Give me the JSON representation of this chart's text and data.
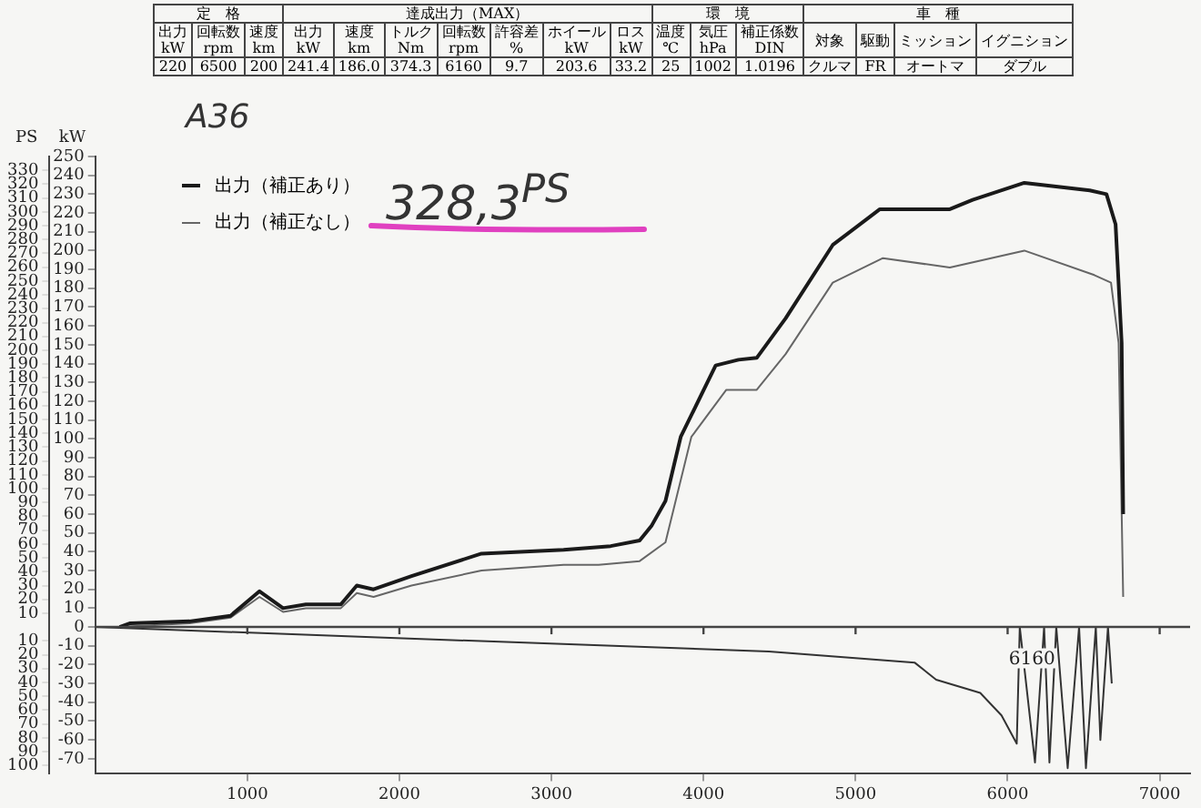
{
  "chart_data": {
    "type": "line",
    "ylabel": "kW",
    "y2label": "PS",
    "annotations": [
      "定　格",
      "達成出力（MAX）",
      "環　境",
      "車　種",
      "出力\nkW",
      "回転数\nrpm",
      "速度\nkm",
      "出力\nkW",
      "速度\nkm",
      "トルク\nNm",
      "回転数\nrpm",
      "許容差\n%",
      "ホイール\nkW",
      "ロス\nkW",
      "温度\n℃",
      "気圧\nhPa",
      "補正係数\nDIN",
      "対象",
      "駆動",
      "ミッション",
      "イグニション",
      "220",
      "6500",
      "200",
      "241.4",
      "186.0",
      "374.3",
      "6160",
      "9.7",
      "203.6",
      "33.2",
      "25",
      "1002",
      "1.0196",
      "クルマ",
      "FR",
      "オートマ",
      "ダブル",
      "A36",
      "328,3$^{PS}$",
      {
        "text": "6160",
        "x": 6160,
        "y": -20
      }
    ],
    "series": [
      {
        "name": "出力（補正あり）",
        "color": "#1a1a1a",
        "x": [
          160,
          230,
          620,
          890,
          1080,
          1235,
          1385,
          1615,
          1720,
          1830,
          2080,
          2540,
          3080,
          3390,
          3580,
          3660,
          3750,
          3850,
          4080,
          4230,
          4350,
          4540,
          4850,
          5160,
          5620,
          5770,
          6110,
          6540,
          6650,
          6710,
          6750,
          6760
        ],
        "values": [
          0,
          2,
          3,
          6,
          19,
          10,
          12,
          12,
          22,
          20,
          27,
          39,
          41,
          43,
          46,
          54,
          67,
          101,
          139,
          142,
          143,
          164,
          203,
          222,
          222,
          227,
          236,
          232,
          230,
          214,
          151,
          60
        ]
      },
      {
        "name": "出力（補正なし）",
        "color": "#666666",
        "x": [
          160,
          620,
          890,
          1080,
          1235,
          1385,
          1615,
          1720,
          1830,
          2080,
          2540,
          3080,
          3310,
          3580,
          3750,
          3920,
          4150,
          4350,
          4540,
          4850,
          5180,
          5620,
          6110,
          6570,
          6680,
          6730,
          6760
        ],
        "values": [
          0,
          2,
          5,
          16,
          8,
          10,
          10,
          18,
          16,
          22,
          30,
          33,
          33,
          35,
          45,
          101,
          126,
          126,
          145,
          183,
          196,
          191,
          200,
          187,
          183,
          151,
          16
        ]
      },
      {
        "color": "#333333",
        "x": [
          0,
          2020,
          4430,
          5390,
          5530,
          5820,
          5960,
          6060,
          6080,
          6180,
          6240,
          6275,
          6320,
          6395,
          6470,
          6515,
          6580,
          6610,
          6660,
          6685
        ],
        "values": [
          0,
          -6,
          -13,
          -19,
          -28,
          -35,
          -47,
          -62,
          0,
          -72,
          0,
          -72,
          0,
          -75,
          0,
          -75,
          0,
          -60,
          0,
          -30
        ]
      }
    ],
    "xlim": [
      0,
      7200
    ],
    "xticks": [
      1000,
      2000,
      3000,
      4000,
      5000,
      6000,
      7000
    ],
    "ylim": [
      -78,
      250
    ],
    "yticks": [
      250,
      240,
      230,
      220,
      210,
      200,
      190,
      180,
      170,
      160,
      150,
      140,
      130,
      120,
      110,
      100,
      90,
      80,
      70,
      60,
      50,
      40,
      30,
      20,
      10,
      0,
      -10,
      -20,
      -30,
      -40,
      -50,
      -60,
      -70
    ],
    "y2lim": [
      -106,
      340
    ],
    "y2ticks": [
      330,
      320,
      310,
      300,
      290,
      280,
      270,
      260,
      250,
      240,
      230,
      220,
      210,
      200,
      190,
      180,
      170,
      160,
      150,
      140,
      130,
      120,
      110,
      100,
      90,
      80,
      70,
      60,
      50,
      40,
      30,
      20,
      10,
      {
        "value": -10,
        "label": "10"
      },
      {
        "value": -20,
        "label": "20"
      },
      {
        "value": -30,
        "label": "30"
      },
      {
        "value": -40,
        "label": "40"
      },
      {
        "value": -50,
        "label": "50"
      },
      {
        "value": -60,
        "label": "60"
      },
      {
        "value": -70,
        "label": "70"
      },
      {
        "value": -80,
        "label": "80"
      },
      {
        "value": -90,
        "label": "90"
      },
      {
        "value": -100,
        "label": "100"
      }
    ],
    "ref_lines": [
      {
        "axis": "y",
        "value": 0
      }
    ],
    "grid": false,
    "legend": "top left",
    "marker": "none",
    "line_style": "solid"
  }
}
